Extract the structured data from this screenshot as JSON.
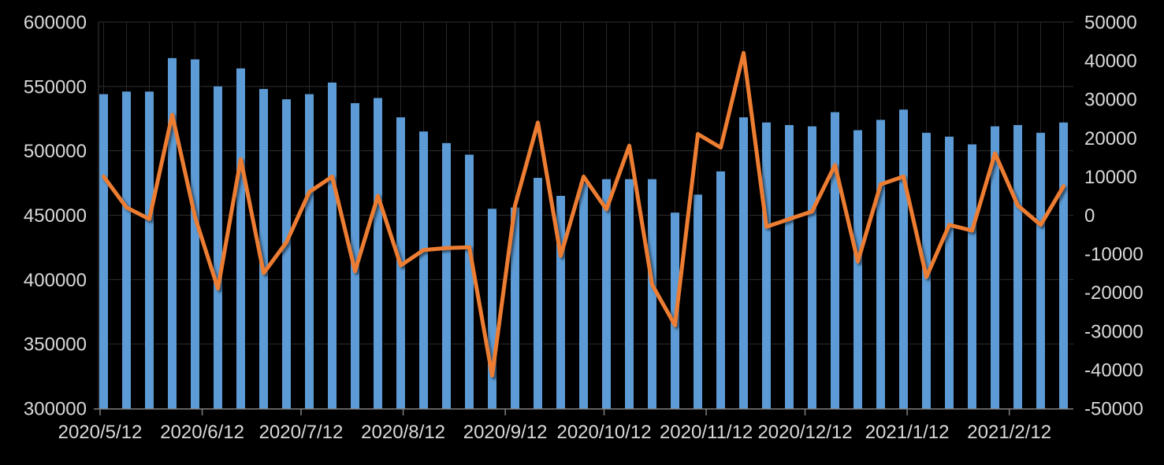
{
  "chart_data": {
    "type": "combo-bar-line-dual-axis",
    "title": "",
    "background_color": "#000000",
    "plot_background_color": "#000000",
    "grid": {
      "on": true,
      "h_color": "#303030",
      "v_color": "#282828",
      "axis_color": "#7f7f7f"
    },
    "left_axis": {
      "min": 300000,
      "max": 600000,
      "step": 50000,
      "tick_labels": [
        "600000",
        "550000",
        "500000",
        "450000",
        "400000",
        "350000",
        "300000"
      ]
    },
    "right_axis": {
      "min": -50000,
      "max": 50000,
      "step": 10000,
      "tick_labels": [
        "50000",
        "40000",
        "30000",
        "20000",
        "10000",
        "0",
        "-10000",
        "-20000",
        "-30000",
        "-40000",
        "-50000"
      ]
    },
    "x_axis": {
      "tick_labels": [
        "2020/5/12",
        "2020/6/12",
        "2020/7/12",
        "2020/8/12",
        "2020/9/12",
        "2020/10/12",
        "2020/11/12",
        "2020/12/12",
        "2021/1/12",
        "2021/2/12"
      ],
      "tick_day_offsets": [
        0,
        31,
        61,
        92,
        123,
        153,
        184,
        214,
        245,
        276
      ],
      "points_count": 43,
      "point_interval_days": 7
    },
    "legend": {
      "visible": false
    },
    "series": [
      {
        "name": "bar-series",
        "type": "bar",
        "axis": "left",
        "color": "#5b9bd5",
        "values": [
          544000,
          546000,
          546000,
          572000,
          571000,
          550000,
          564000,
          548000,
          540000,
          544000,
          553000,
          537000,
          541000,
          526000,
          515000,
          506000,
          497000,
          455000,
          456000,
          479000,
          465000,
          475000,
          478000,
          478000,
          478000,
          452000,
          466000,
          484000,
          526000,
          522000,
          520000,
          519000,
          530000,
          516000,
          524000,
          532000,
          514000,
          511000,
          505000,
          519000,
          520000,
          514000,
          522000
        ]
      },
      {
        "name": "line-series",
        "type": "line",
        "axis": "right",
        "color": "#ed7d31",
        "values": [
          10000,
          2000,
          -1000,
          26000,
          -500,
          -19000,
          14500,
          -15000,
          -7000,
          6000,
          10000,
          -14500,
          5000,
          -13000,
          -9000,
          -8500,
          -8300,
          -41500,
          2500,
          24000,
          -10500,
          10000,
          1500,
          18000,
          -18000,
          -28500,
          21000,
          17500,
          42000,
          -3000,
          -1000,
          1000,
          13000,
          -12000,
          8000,
          10000,
          -16000,
          -2500,
          -4000,
          16000,
          2500,
          -2500,
          7500
        ]
      }
    ]
  }
}
